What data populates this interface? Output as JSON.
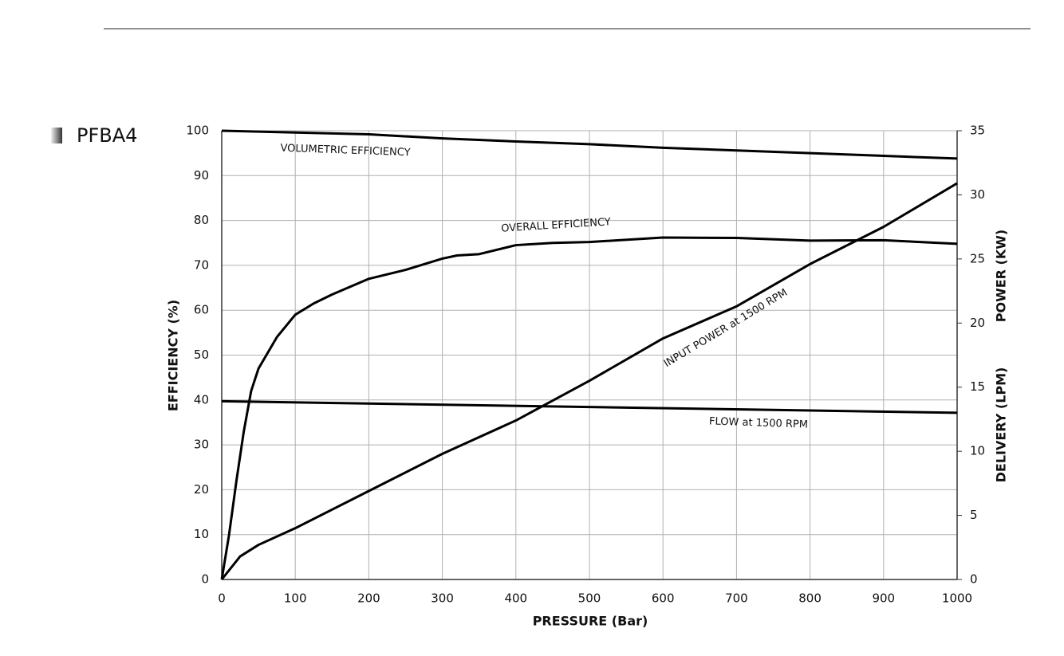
{
  "chart_data": {
    "type": "line",
    "title": "PFBA4",
    "xlabel": "PRESSURE (Bar)",
    "ylabel": "EFFICIENCY (%)",
    "y2labels": [
      "POWER (KW)",
      "DELIVERY (LPM)"
    ],
    "xlim": [
      0,
      1000
    ],
    "xticks": [
      0,
      100,
      200,
      300,
      400,
      500,
      600,
      700,
      800,
      900,
      1000
    ],
    "ylim": [
      0,
      100
    ],
    "yticks": [
      0,
      10,
      20,
      30,
      40,
      50,
      60,
      70,
      80,
      90,
      100
    ],
    "y2lim": [
      0,
      35
    ],
    "y2ticks": [
      0,
      5,
      10,
      15,
      20,
      25,
      30,
      35
    ],
    "grid": true,
    "series": [
      {
        "name": "VOLUMETRIC EFFICIENCY",
        "color": "#000000",
        "x": [
          0,
          100,
          200,
          300,
          400,
          500,
          600,
          700,
          800,
          900,
          1000
        ],
        "values": [
          100,
          99.6,
          99.2,
          98.3,
          97.6,
          97,
          96.2,
          95.6,
          95,
          94.4,
          93.8
        ]
      },
      {
        "name": "OVERALL EFFICIENCY",
        "color": "#000000",
        "x": [
          0,
          10,
          20,
          30,
          40,
          50,
          75,
          100,
          125,
          150,
          200,
          250,
          300,
          320,
          350,
          400,
          450,
          500,
          600,
          700,
          800,
          900,
          1000
        ],
        "values": [
          0,
          10,
          22,
          33,
          42,
          47,
          54,
          59,
          61.5,
          63.5,
          67,
          69,
          71.5,
          72.2,
          72.5,
          74.5,
          75,
          75.2,
          76.2,
          76.1,
          75.5,
          75.6,
          74.8
        ]
      },
      {
        "name": "INPUT POWER at 1500 RPM",
        "color": "#000000",
        "axis": "y2",
        "x": [
          0,
          25,
          50,
          100,
          200,
          300,
          400,
          500,
          600,
          700,
          800,
          900,
          1000
        ],
        "values": [
          0,
          1.8,
          2.7,
          4.0,
          6.9,
          9.8,
          12.4,
          15.5,
          18.8,
          21.3,
          24.6,
          27.5,
          30.9
        ]
      },
      {
        "name": "FLOW at 1500 RPM",
        "color": "#000000",
        "axis": "y2",
        "x": [
          0,
          1000
        ],
        "values": [
          13.9,
          13.0
        ]
      }
    ]
  }
}
